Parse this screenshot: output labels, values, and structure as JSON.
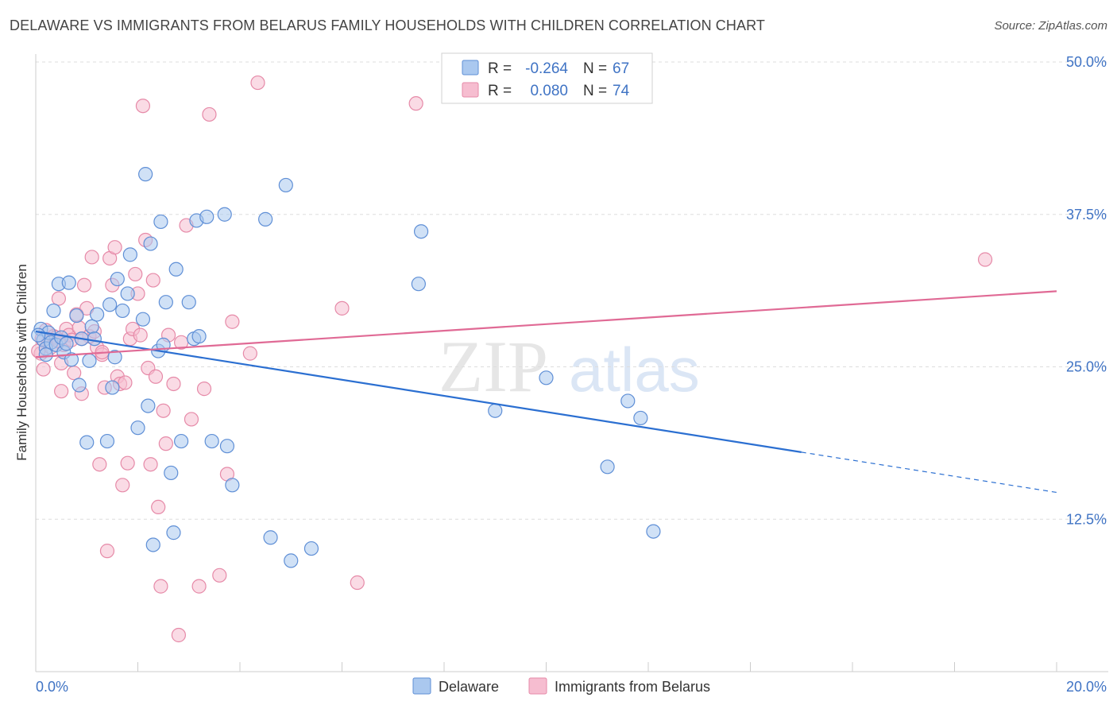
{
  "title": "DELAWARE VS IMMIGRANTS FROM BELARUS FAMILY HOUSEHOLDS WITH CHILDREN CORRELATION CHART",
  "source": "Source: ZipAtlas.com",
  "watermark": {
    "zip": "ZIP",
    "atlas": "atlas"
  },
  "colors": {
    "blue_fill": "#aac8ef",
    "blue_stroke": "#5f8fd6",
    "blue_line": "#2b6fd1",
    "pink_fill": "#f6bdd0",
    "pink_stroke": "#e68aa8",
    "pink_line": "#e06a95",
    "axis_label": "#3f73c4",
    "grid": "#dddddd"
  },
  "chart_data": {
    "type": "scatter",
    "ylabel": "Family Households with Children",
    "xlim": [
      0,
      20
    ],
    "ylim": [
      0,
      52
    ],
    "x_tick_labels": {
      "left": "0.0%",
      "right": "20.0%"
    },
    "y_ticks": [
      {
        "value": 12.5,
        "label": "12.5%"
      },
      {
        "value": 25.0,
        "label": "25.0%"
      },
      {
        "value": 37.5,
        "label": "37.5%"
      },
      {
        "value": 50.0,
        "label": "50.0%"
      }
    ],
    "legend_top": [
      {
        "series": "Delaware",
        "r_label": "R =",
        "r_value": "-0.264",
        "n_label": "N =",
        "n_value": "67"
      },
      {
        "series": "Immigrants from Belarus",
        "r_label": "R =",
        "r_value": "0.080",
        "n_label": "N =",
        "n_value": "74"
      }
    ],
    "series": [
      {
        "name": "Delaware",
        "color": "blue",
        "points": [
          [
            0.1,
            28.1
          ],
          [
            0.15,
            27.2
          ],
          [
            0.2,
            26.5
          ],
          [
            0.25,
            27.8
          ],
          [
            0.3,
            27.0
          ],
          [
            0.35,
            29.6
          ],
          [
            0.4,
            26.8
          ],
          [
            0.45,
            31.8
          ],
          [
            0.5,
            27.4
          ],
          [
            0.55,
            26.2
          ],
          [
            0.6,
            26.9
          ],
          [
            0.65,
            31.9
          ],
          [
            0.7,
            25.6
          ],
          [
            0.8,
            29.2
          ],
          [
            0.85,
            23.5
          ],
          [
            0.9,
            27.3
          ],
          [
            1.0,
            18.8
          ],
          [
            1.05,
            25.5
          ],
          [
            1.1,
            28.3
          ],
          [
            1.15,
            27.3
          ],
          [
            1.2,
            29.3
          ],
          [
            1.4,
            18.9
          ],
          [
            1.45,
            30.1
          ],
          [
            1.5,
            23.3
          ],
          [
            1.55,
            25.8
          ],
          [
            1.6,
            32.2
          ],
          [
            1.7,
            29.6
          ],
          [
            1.8,
            31.0
          ],
          [
            1.85,
            34.2
          ],
          [
            2.0,
            20.0
          ],
          [
            2.1,
            28.9
          ],
          [
            2.15,
            40.8
          ],
          [
            2.2,
            21.8
          ],
          [
            2.25,
            35.1
          ],
          [
            2.3,
            10.4
          ],
          [
            2.4,
            26.3
          ],
          [
            2.45,
            36.9
          ],
          [
            2.5,
            26.8
          ],
          [
            2.55,
            30.3
          ],
          [
            2.65,
            16.3
          ],
          [
            2.7,
            11.4
          ],
          [
            2.75,
            33.0
          ],
          [
            2.85,
            18.9
          ],
          [
            3.0,
            30.3
          ],
          [
            3.1,
            27.3
          ],
          [
            3.15,
            37.0
          ],
          [
            3.2,
            27.5
          ],
          [
            3.35,
            37.3
          ],
          [
            3.45,
            18.9
          ],
          [
            3.7,
            37.5
          ],
          [
            3.75,
            18.5
          ],
          [
            3.85,
            15.3
          ],
          [
            4.5,
            37.1
          ],
          [
            4.6,
            11.0
          ],
          [
            4.9,
            39.9
          ],
          [
            5.0,
            9.1
          ],
          [
            5.4,
            10.1
          ],
          [
            7.5,
            31.8
          ],
          [
            7.55,
            36.1
          ],
          [
            9.0,
            21.4
          ],
          [
            10.0,
            24.1
          ],
          [
            11.2,
            16.8
          ],
          [
            11.6,
            22.2
          ],
          [
            11.85,
            20.8
          ],
          [
            12.1,
            11.5
          ],
          [
            0.05,
            27.6
          ],
          [
            0.2,
            26.0
          ]
        ]
      },
      {
        "name": "Immigrants from Belarus",
        "color": "pink",
        "points": [
          [
            0.1,
            26.1
          ],
          [
            0.15,
            24.8
          ],
          [
            0.2,
            28.0
          ],
          [
            0.25,
            27.1
          ],
          [
            0.3,
            26.6
          ],
          [
            0.35,
            27.5
          ],
          [
            0.4,
            27.4
          ],
          [
            0.45,
            30.6
          ],
          [
            0.5,
            25.3
          ],
          [
            0.5,
            23.0
          ],
          [
            0.55,
            26.8
          ],
          [
            0.6,
            28.1
          ],
          [
            0.65,
            27.6
          ],
          [
            0.7,
            27.2
          ],
          [
            0.75,
            24.5
          ],
          [
            0.8,
            29.3
          ],
          [
            0.85,
            28.2
          ],
          [
            0.9,
            22.8
          ],
          [
            0.95,
            31.7
          ],
          [
            1.0,
            29.8
          ],
          [
            1.05,
            27.5
          ],
          [
            1.1,
            34.0
          ],
          [
            1.15,
            27.9
          ],
          [
            1.2,
            26.6
          ],
          [
            1.25,
            17.0
          ],
          [
            1.3,
            26.0
          ],
          [
            1.35,
            23.3
          ],
          [
            1.4,
            9.9
          ],
          [
            1.45,
            33.9
          ],
          [
            1.5,
            31.7
          ],
          [
            1.55,
            34.8
          ],
          [
            1.6,
            24.2
          ],
          [
            1.65,
            23.6
          ],
          [
            1.7,
            15.3
          ],
          [
            1.75,
            23.7
          ],
          [
            1.8,
            17.1
          ],
          [
            1.85,
            27.3
          ],
          [
            1.9,
            28.1
          ],
          [
            1.95,
            32.6
          ],
          [
            2.0,
            31.0
          ],
          [
            2.05,
            27.6
          ],
          [
            2.1,
            46.4
          ],
          [
            2.15,
            35.4
          ],
          [
            2.2,
            24.9
          ],
          [
            2.25,
            17.0
          ],
          [
            2.3,
            32.1
          ],
          [
            2.35,
            24.2
          ],
          [
            2.4,
            13.5
          ],
          [
            2.45,
            7.0
          ],
          [
            2.5,
            21.4
          ],
          [
            2.55,
            18.7
          ],
          [
            2.6,
            27.6
          ],
          [
            2.7,
            23.6
          ],
          [
            2.8,
            3.0
          ],
          [
            2.85,
            27.0
          ],
          [
            2.95,
            36.6
          ],
          [
            3.05,
            20.7
          ],
          [
            3.2,
            7.0
          ],
          [
            3.3,
            23.2
          ],
          [
            3.4,
            45.7
          ],
          [
            3.6,
            7.9
          ],
          [
            3.75,
            16.2
          ],
          [
            3.85,
            28.7
          ],
          [
            4.2,
            26.1
          ],
          [
            4.35,
            48.3
          ],
          [
            6.0,
            29.8
          ],
          [
            6.3,
            7.3
          ],
          [
            7.45,
            46.6
          ],
          [
            18.6,
            33.8
          ],
          [
            0.05,
            26.3
          ],
          [
            0.12,
            27.3
          ],
          [
            0.45,
            27.1
          ],
          [
            0.9,
            27.3
          ],
          [
            1.3,
            26.2
          ]
        ]
      }
    ],
    "trend_lines": [
      {
        "series": "Delaware",
        "x_start": 0.0,
        "y_start": 27.9,
        "x_end_solid": 15.0,
        "y_end_solid": 18.0,
        "x_end_dashed": 20.0,
        "y_end_dashed": 14.7,
        "dashed_extension": true
      },
      {
        "series": "Immigrants from Belarus",
        "x_start": 0.0,
        "y_start": 25.8,
        "x_end": 20.0,
        "y_end": 31.2
      }
    ],
    "legend_bottom": [
      "Delaware",
      "Immigrants from Belarus"
    ]
  }
}
